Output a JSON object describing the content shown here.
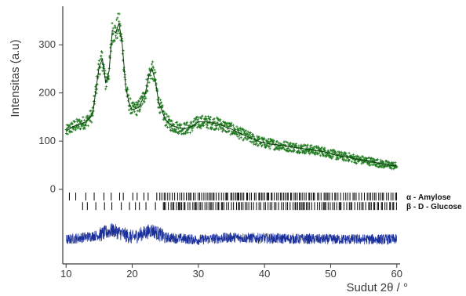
{
  "chart_data": {
    "type": "line",
    "title": "",
    "xlabel": "Sudut 2θ / °",
    "ylabel": "Intensitas (a.u)",
    "xlim": [
      9.5,
      60.5
    ],
    "ylim": [
      -155,
      380
    ],
    "xticks": [
      10,
      20,
      30,
      40,
      50,
      60
    ],
    "yticks": [
      0,
      100,
      200,
      300
    ],
    "grid": false,
    "legend": "none",
    "colors": {
      "observed": "#1f7a1f",
      "fit": "#0a3a0a",
      "difference": "#1a2f9a",
      "reference_ticks": "#000000",
      "axis": "#3a3a3a"
    },
    "series": [
      {
        "role": "observed-crosses",
        "x": [
          10,
          11,
          12,
          13,
          14,
          15,
          15.5,
          16,
          16.5,
          17,
          17.5,
          18,
          18.5,
          19,
          19.5,
          20,
          21,
          22,
          22.5,
          23,
          23.5,
          24,
          25,
          26,
          27,
          28,
          29,
          30,
          31,
          32,
          33,
          34,
          35,
          36,
          37,
          38,
          39,
          40,
          41,
          42,
          43,
          44,
          45,
          46,
          47,
          48,
          49,
          50,
          51,
          52,
          53,
          54,
          55,
          56,
          57,
          58,
          59,
          60
        ],
        "y": [
          120,
          130,
          135,
          140,
          155,
          255,
          270,
          220,
          245,
          330,
          325,
          345,
          300,
          215,
          180,
          165,
          170,
          200,
          235,
          250,
          225,
          180,
          145,
          132,
          128,
          126,
          130,
          140,
          140,
          138,
          136,
          130,
          125,
          118,
          112,
          106,
          100,
          96,
          94,
          92,
          90,
          88,
          86,
          84,
          82,
          80,
          78,
          74,
          70,
          68,
          66,
          62,
          60,
          58,
          55,
          52,
          50,
          48
        ]
      },
      {
        "role": "calculated-fit",
        "x": [
          10,
          11,
          12,
          13,
          14,
          15,
          15.5,
          16,
          16.5,
          17,
          17.5,
          18,
          18.5,
          19,
          19.5,
          20,
          21,
          22,
          22.5,
          23,
          23.5,
          24,
          25,
          26,
          27,
          28,
          29,
          30,
          31,
          32,
          33,
          34,
          35,
          36,
          37,
          38,
          39,
          40,
          41,
          42,
          43,
          44,
          45,
          46,
          47,
          48,
          49,
          50,
          51,
          52,
          53,
          54,
          55,
          56,
          57,
          58,
          59,
          60
        ],
        "y": [
          120,
          130,
          135,
          140,
          155,
          255,
          270,
          220,
          245,
          330,
          325,
          345,
          300,
          215,
          180,
          165,
          170,
          200,
          235,
          250,
          225,
          180,
          145,
          132,
          128,
          126,
          130,
          140,
          140,
          138,
          136,
          130,
          125,
          118,
          112,
          106,
          100,
          96,
          94,
          92,
          90,
          88,
          86,
          84,
          82,
          80,
          78,
          74,
          70,
          68,
          66,
          62,
          60,
          58,
          55,
          52,
          50,
          48
        ]
      },
      {
        "role": "difference",
        "x": [
          10,
          15,
          17,
          20,
          23,
          25,
          30,
          35,
          40,
          45,
          50,
          55,
          60
        ],
        "y": [
          -105,
          -95,
          -85,
          -100,
          -85,
          -100,
          -105,
          -100,
          -102,
          -103,
          -104,
          -104,
          -104
        ],
        "amplitude": 22
      }
    ],
    "reference_patterns": [
      {
        "label": "α - Amylose",
        "y": -15,
        "from": 10.5,
        "to": 60,
        "dense_from": 23,
        "dense_to": 60
      },
      {
        "label": "β - D - Glucose",
        "y": -35,
        "from": 12.5,
        "to": 60,
        "dense_from": 24,
        "dense_to": 60
      }
    ]
  }
}
